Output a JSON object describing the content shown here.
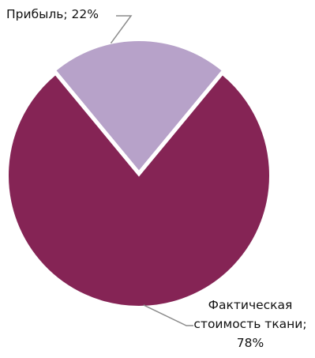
{
  "chart_data": {
    "type": "pie",
    "slices": [
      {
        "label": "Прибыль",
        "value": 22,
        "color": "#b7a2c9"
      },
      {
        "label": "Фактическая стоимость ткани",
        "value": 78,
        "color": "#852455"
      }
    ],
    "data_labels": [
      {
        "text": "Прибыль; 22%"
      },
      {
        "text_line1": "Фактическая",
        "text_line2": "стоимость ткани;",
        "text_line3": "78%"
      }
    ],
    "leader_line_color": "#8c8c8c",
    "separator_color": "#ffffff",
    "legend": "none"
  }
}
